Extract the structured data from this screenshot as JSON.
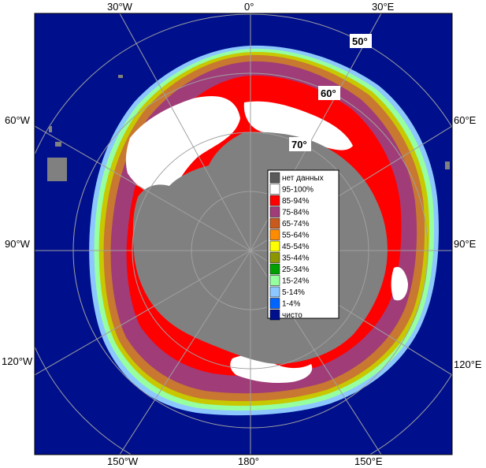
{
  "map": {
    "longitude_labels": {
      "top": [
        "30°W",
        "0°",
        "30°E"
      ],
      "left": [
        "60°W",
        "90°W",
        "120°W"
      ],
      "right": [
        "60°E",
        "90°E",
        "120°E"
      ],
      "bottom": [
        "150°W",
        "180°",
        "150°E"
      ]
    },
    "latitude_labels": [
      "50°",
      "60°",
      "70°"
    ],
    "colors": {
      "ocean": "#00108c",
      "land": "#808080",
      "graticule": "#a0a0a0",
      "no_data": "#5a5a5a"
    }
  },
  "legend": {
    "items": [
      {
        "label": "нет данных",
        "color": "#5a5a5a"
      },
      {
        "label": "95-100%",
        "color": "#ffffff"
      },
      {
        "label": "85-94%",
        "color": "#ff0000"
      },
      {
        "label": "75-84%",
        "color": "#a03c78"
      },
      {
        "label": "65-74%",
        "color": "#c85a1e"
      },
      {
        "label": "55-64%",
        "color": "#ff8c00"
      },
      {
        "label": "45-54%",
        "color": "#ffff00"
      },
      {
        "label": "35-44%",
        "color": "#8c9600"
      },
      {
        "label": "25-34%",
        "color": "#00a000"
      },
      {
        "label": "15-24%",
        "color": "#96ffa0"
      },
      {
        "label": "5-14%",
        "color": "#8cc8ff"
      },
      {
        "label": "1-4%",
        "color": "#0064ff"
      },
      {
        "label": "чисто",
        "color": "#00108c"
      }
    ]
  }
}
